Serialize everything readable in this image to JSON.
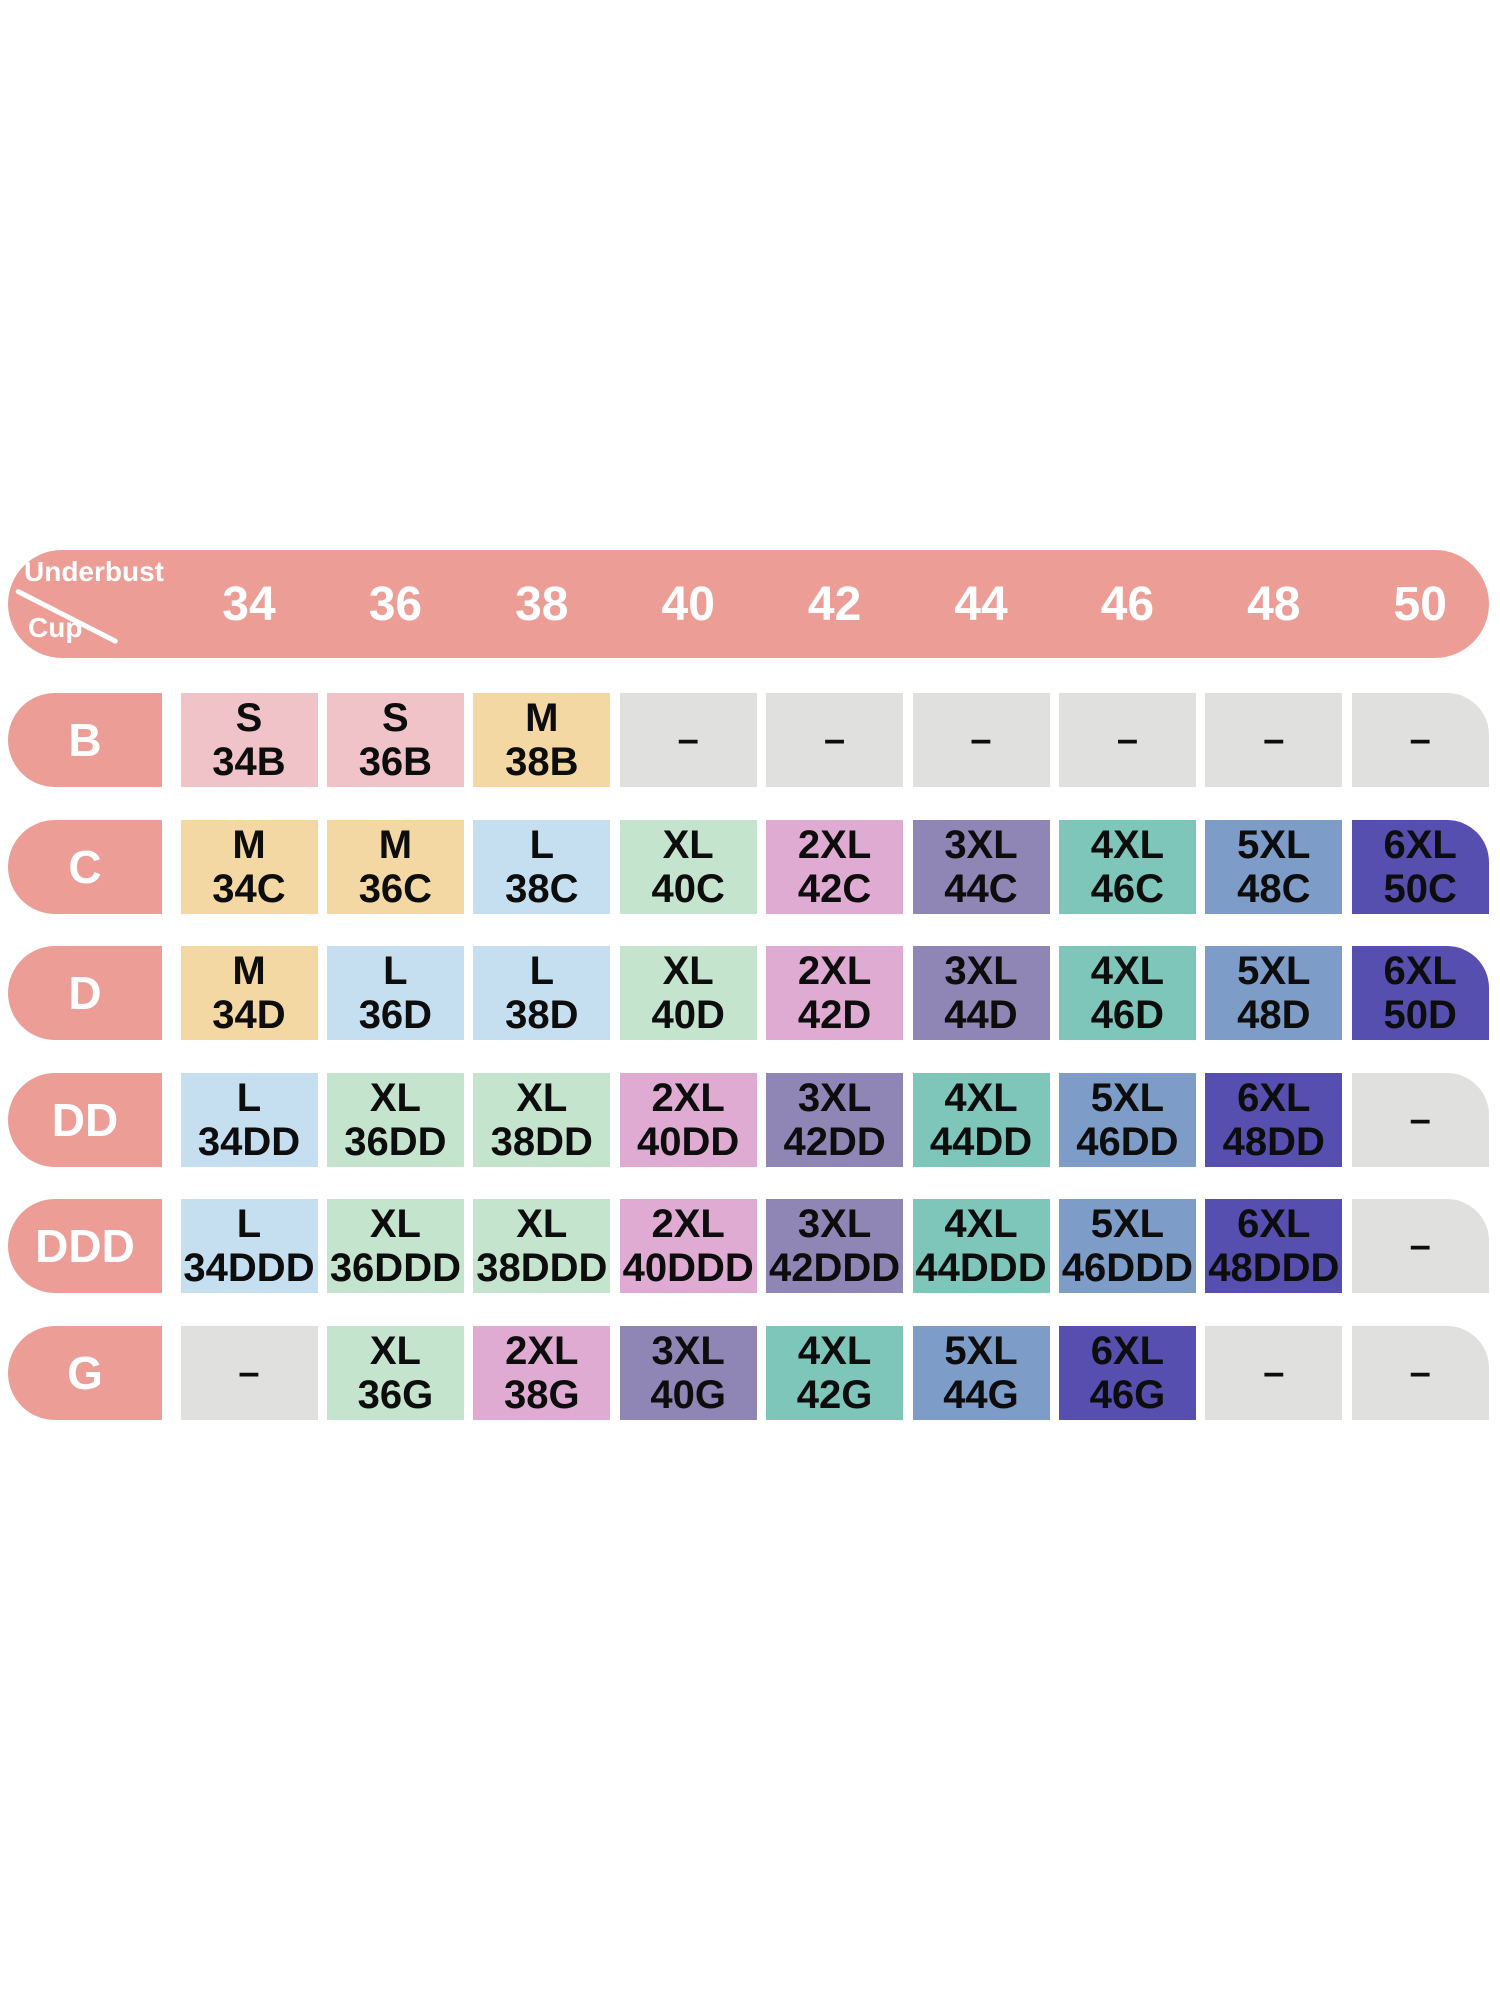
{
  "chart_data": {
    "type": "table",
    "corner": {
      "top": "Underbust",
      "bottom": "Cup"
    },
    "underbust_columns": [
      "34",
      "36",
      "38",
      "40",
      "42",
      "44",
      "46",
      "48",
      "50"
    ],
    "cup_rows": [
      "B",
      "C",
      "D",
      "DD",
      "DDD",
      "G"
    ],
    "dash": "–",
    "colors": {
      "header": "#EB9D96",
      "header_text": "#FFFFFF",
      "cell_text": "#0D0D0D",
      "S": "#F0C3C8",
      "M": "#F3D8A3",
      "L": "#C5DFF0",
      "XL": "#C5E4CE",
      "2XL": "#E0ABD2",
      "3XL": "#8F86B5",
      "4XL": "#7EC6B9",
      "5XL": "#7E9CC8",
      "6XL": "#564FB0",
      "empty": "#E0E0DF"
    },
    "rows": [
      {
        "cup": "B",
        "cells": [
          {
            "size": "S",
            "code": "34B"
          },
          {
            "size": "S",
            "code": "36B"
          },
          {
            "size": "M",
            "code": "38B"
          },
          null,
          null,
          null,
          null,
          null,
          null
        ]
      },
      {
        "cup": "C",
        "cells": [
          {
            "size": "M",
            "code": "34C"
          },
          {
            "size": "M",
            "code": "36C"
          },
          {
            "size": "L",
            "code": "38C"
          },
          {
            "size": "XL",
            "code": "40C"
          },
          {
            "size": "2XL",
            "code": "42C"
          },
          {
            "size": "3XL",
            "code": "44C"
          },
          {
            "size": "4XL",
            "code": "46C"
          },
          {
            "size": "5XL",
            "code": "48C"
          },
          {
            "size": "6XL",
            "code": "50C"
          }
        ]
      },
      {
        "cup": "D",
        "cells": [
          {
            "size": "M",
            "code": "34D"
          },
          {
            "size": "L",
            "code": "36D"
          },
          {
            "size": "L",
            "code": "38D"
          },
          {
            "size": "XL",
            "code": "40D"
          },
          {
            "size": "2XL",
            "code": "42D"
          },
          {
            "size": "3XL",
            "code": "44D"
          },
          {
            "size": "4XL",
            "code": "46D"
          },
          {
            "size": "5XL",
            "code": "48D"
          },
          {
            "size": "6XL",
            "code": "50D"
          }
        ]
      },
      {
        "cup": "DD",
        "cells": [
          {
            "size": "L",
            "code": "34DD"
          },
          {
            "size": "XL",
            "code": "36DD"
          },
          {
            "size": "XL",
            "code": "38DD"
          },
          {
            "size": "2XL",
            "code": "40DD"
          },
          {
            "size": "3XL",
            "code": "42DD"
          },
          {
            "size": "4XL",
            "code": "44DD"
          },
          {
            "size": "5XL",
            "code": "46DD"
          },
          {
            "size": "6XL",
            "code": "48DD"
          },
          null
        ]
      },
      {
        "cup": "DDD",
        "cells": [
          {
            "size": "L",
            "code": "34DDD"
          },
          {
            "size": "XL",
            "code": "36DDD"
          },
          {
            "size": "XL",
            "code": "38DDD"
          },
          {
            "size": "2XL",
            "code": "40DDD"
          },
          {
            "size": "3XL",
            "code": "42DDD"
          },
          {
            "size": "4XL",
            "code": "44DDD"
          },
          {
            "size": "5XL",
            "code": "46DDD"
          },
          {
            "size": "6XL",
            "code": "48DDD"
          },
          null
        ]
      },
      {
        "cup": "G",
        "cells": [
          null,
          {
            "size": "XL",
            "code": "36G"
          },
          {
            "size": "2XL",
            "code": "38G"
          },
          {
            "size": "3XL",
            "code": "40G"
          },
          {
            "size": "4XL",
            "code": "42G"
          },
          {
            "size": "5XL",
            "code": "44G"
          },
          {
            "size": "6XL",
            "code": "46G"
          },
          null,
          null
        ]
      }
    ]
  }
}
